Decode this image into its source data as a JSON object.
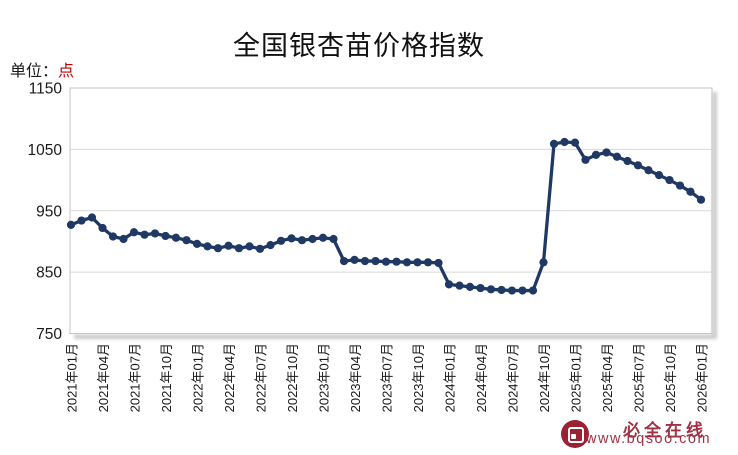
{
  "title": "全国银杏苗价格指数",
  "unit": {
    "prefix": "单位：",
    "value": "点"
  },
  "watermark": {
    "brand": "必全在线",
    "url": "www.bqsoo.com",
    "color": "#a03245",
    "logo_color": "#9c2133"
  },
  "chart_data": {
    "type": "line",
    "title": "全国银杏苗价格指数",
    "ylabel": "点",
    "ylim": [
      750,
      1150
    ],
    "y_ticks": [
      750,
      850,
      950,
      1050,
      1150
    ],
    "x_tick_step": 3,
    "grid": true,
    "line_color": "#1f3864",
    "marker": "circle",
    "grid_color": "#d9d9d9",
    "border_color": "#c6c6c6",
    "categories": [
      "2021年01月",
      "2021年02月",
      "2021年03月",
      "2021年04月",
      "2021年05月",
      "2021年06月",
      "2021年07月",
      "2021年08月",
      "2021年09月",
      "2021年10月",
      "2021年11月",
      "2021年12月",
      "2022年01月",
      "2022年02月",
      "2022年03月",
      "2022年04月",
      "2022年05月",
      "2022年06月",
      "2022年07月",
      "2022年08月",
      "2022年09月",
      "2022年10月",
      "2022年11月",
      "2022年12月",
      "2023年01月",
      "2023年02月",
      "2023年03月",
      "2023年04月",
      "2023年05月",
      "2023年06月",
      "2023年07月",
      "2023年08月",
      "2023年09月",
      "2023年10月",
      "2023年11月",
      "2023年12月",
      "2024年01月",
      "2024年02月",
      "2024年03月",
      "2024年04月",
      "2024年05月",
      "2024年06月",
      "2024年07月",
      "2024年08月",
      "2024年09月",
      "2024年10月",
      "2024年11月",
      "2024年12月",
      "2025年01月",
      "2025年02月",
      "2025年03月",
      "2025年04月",
      "2025年05月",
      "2025年06月",
      "2025年07月",
      "2025年08月",
      "2025年09月",
      "2025年10月",
      "2025年11月",
      "2025年12月",
      "2026年01月"
    ],
    "values": [
      927,
      934,
      939,
      922,
      908,
      904,
      915,
      911,
      913,
      909,
      906,
      902,
      896,
      892,
      889,
      893,
      889,
      892,
      888,
      894,
      901,
      905,
      902,
      904,
      906,
      904,
      868,
      870,
      868,
      868,
      867,
      867,
      866,
      866,
      866,
      865,
      830,
      828,
      826,
      824,
      822,
      821,
      820,
      820,
      820,
      866,
      1059,
      1062,
      1061,
      1033,
      1041,
      1045,
      1038,
      1031,
      1024,
      1016,
      1008,
      1000,
      991,
      981,
      968
    ]
  }
}
